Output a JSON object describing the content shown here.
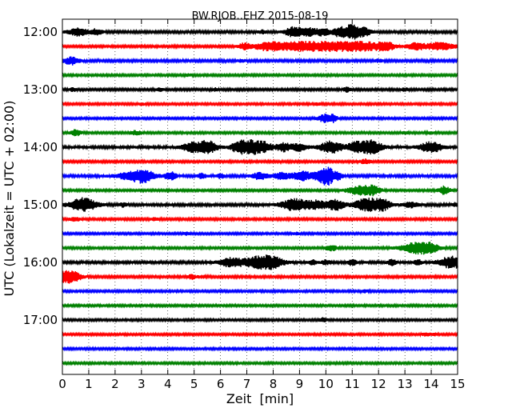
{
  "chart_data": {
    "type": "line",
    "title": "BW.RJOB..EHZ 2015-08-19",
    "xlabel": "Zeit  [min]",
    "ylabel": "UTC (Lokalzeit = UTC + 02:00)",
    "xlim": [
      0,
      15
    ],
    "x_ticks": [
      "0",
      "1",
      "2",
      "3",
      "4",
      "5",
      "6",
      "7",
      "8",
      "9",
      "10",
      "11",
      "12",
      "13",
      "14",
      "15"
    ],
    "y_ticks": [
      {
        "label": "12:00",
        "row": 0
      },
      {
        "label": "13:00",
        "row": 4
      },
      {
        "label": "14:00",
        "row": 8
      },
      {
        "label": "15:00",
        "row": 12
      },
      {
        "label": "16:00",
        "row": 16
      },
      {
        "label": "17:00",
        "row": 20
      }
    ],
    "grid": "vertical dotted",
    "colors": [
      "#000000",
      "#ff0000",
      "#0000ff",
      "#008000"
    ],
    "traces": [
      {
        "row": 0,
        "color": "#000000",
        "base_amp": 1.5,
        "events": [
          [
            0.6,
            4.5,
            0.25
          ],
          [
            1.3,
            3.5,
            0.15
          ],
          [
            7.6,
            2,
            0.1
          ],
          [
            8.8,
            6,
            0.25
          ],
          [
            9.4,
            4,
            0.2
          ],
          [
            9.9,
            4,
            0.2
          ],
          [
            10.5,
            5,
            0.15
          ],
          [
            11.0,
            9,
            0.25
          ],
          [
            11.5,
            4,
            0.15
          ]
        ]
      },
      {
        "row": 1,
        "color": "#ff0000",
        "base_amp": 1.4,
        "events": [
          [
            6.9,
            3.5,
            0.15
          ],
          [
            7.8,
            4.5,
            0.4
          ],
          [
            9.0,
            5,
            0.6
          ],
          [
            10.3,
            5,
            0.6
          ],
          [
            11.5,
            5,
            0.5
          ],
          [
            12.3,
            5,
            0.2
          ],
          [
            13.4,
            4.5,
            0.2
          ],
          [
            14.3,
            4.5,
            0.4
          ]
        ]
      },
      {
        "row": 2,
        "color": "#0000ff",
        "base_amp": 1.5,
        "events": [
          [
            0.35,
            4.5,
            0.2
          ],
          [
            6.8,
            1.5,
            0.1
          ],
          [
            12.0,
            1.5,
            0.1
          ]
        ]
      },
      {
        "row": 3,
        "color": "#008000",
        "base_amp": 1.3,
        "events": [
          [
            4.8,
            1.2,
            0.1
          ]
        ]
      },
      {
        "row": 4,
        "color": "#000000",
        "base_amp": 1.4,
        "events": [
          [
            0.4,
            2,
            0.1
          ],
          [
            3.7,
            1.5,
            0.1
          ],
          [
            5.8,
            1.5,
            0.1
          ],
          [
            10.8,
            3,
            0.1
          ],
          [
            13.0,
            1.5,
            0.1
          ]
        ]
      },
      {
        "row": 5,
        "color": "#ff0000",
        "base_amp": 1.3,
        "events": [
          [
            3.0,
            1.2,
            0.1
          ],
          [
            9.7,
            1.2,
            0.1
          ]
        ]
      },
      {
        "row": 6,
        "color": "#0000ff",
        "base_amp": 1.3,
        "events": [
          [
            10.0,
            5,
            0.2
          ],
          [
            10.3,
            3,
            0.1
          ]
        ]
      },
      {
        "row": 7,
        "color": "#008000",
        "base_amp": 1.3,
        "events": [
          [
            0.5,
            3.5,
            0.15
          ],
          [
            2.7,
            2,
            0.1
          ],
          [
            2.9,
            1.5,
            0.1
          ],
          [
            13.0,
            1.5,
            0.1
          ],
          [
            14.0,
            1.5,
            0.1
          ]
        ]
      },
      {
        "row": 8,
        "color": "#000000",
        "base_amp": 1.7,
        "events": [
          [
            4.9,
            5,
            0.25
          ],
          [
            5.5,
            7.5,
            0.25
          ],
          [
            6.7,
            7,
            0.2
          ],
          [
            7.2,
            8,
            0.25
          ],
          [
            7.7,
            5,
            0.2
          ],
          [
            8.4,
            5,
            0.2
          ],
          [
            9.0,
            4,
            0.2
          ],
          [
            10.2,
            7,
            0.3
          ],
          [
            11.1,
            5,
            0.2
          ],
          [
            11.7,
            8,
            0.3
          ],
          [
            14.0,
            6,
            0.3
          ]
        ]
      },
      {
        "row": 9,
        "color": "#ff0000",
        "base_amp": 1.4,
        "events": [
          [
            11.5,
            2.5,
            0.15
          ]
        ]
      },
      {
        "row": 10,
        "color": "#0000ff",
        "base_amp": 1.6,
        "events": [
          [
            2.6,
            4,
            0.4
          ],
          [
            3.1,
            6,
            0.3
          ],
          [
            4.1,
            5,
            0.15
          ],
          [
            5.3,
            3,
            0.1
          ],
          [
            6.0,
            2.5,
            0.1
          ],
          [
            7.5,
            4,
            0.2
          ],
          [
            8.3,
            4,
            0.2
          ],
          [
            9.1,
            5,
            0.3
          ],
          [
            9.9,
            5,
            0.25
          ],
          [
            10.1,
            7,
            0.2
          ],
          [
            10.5,
            3,
            0.1
          ]
        ]
      },
      {
        "row": 11,
        "color": "#008000",
        "base_amp": 1.3,
        "events": [
          [
            11.3,
            5,
            0.35
          ],
          [
            11.8,
            4,
            0.2
          ],
          [
            14.5,
            5,
            0.15
          ]
        ]
      },
      {
        "row": 12,
        "color": "#000000",
        "base_amp": 1.6,
        "events": [
          [
            0.8,
            8,
            0.35
          ],
          [
            2.3,
            2,
            0.1
          ],
          [
            8.8,
            7,
            0.35
          ],
          [
            9.7,
            5,
            0.3
          ],
          [
            10.4,
            6,
            0.2
          ],
          [
            11.6,
            8,
            0.35
          ],
          [
            12.2,
            5,
            0.2
          ],
          [
            13.2,
            3,
            0.2
          ],
          [
            14.9,
            2,
            0.1
          ]
        ]
      },
      {
        "row": 13,
        "color": "#ff0000",
        "base_amp": 1.4,
        "events": [
          [
            0.5,
            2,
            0.15
          ],
          [
            3.5,
            1.5,
            0.1
          ]
        ]
      },
      {
        "row": 14,
        "color": "#0000ff",
        "base_amp": 1.3,
        "events": [
          [
            4.7,
            1.5,
            0.1
          ],
          [
            8.9,
            1.5,
            0.1
          ]
        ]
      },
      {
        "row": 15,
        "color": "#008000",
        "base_amp": 1.3,
        "events": [
          [
            10.2,
            3.5,
            0.15
          ],
          [
            13.5,
            7,
            0.45
          ],
          [
            14.0,
            3,
            0.2
          ]
        ]
      },
      {
        "row": 16,
        "color": "#000000",
        "base_amp": 1.6,
        "events": [
          [
            6.4,
            5.5,
            0.3
          ],
          [
            7.3,
            5,
            0.35
          ],
          [
            7.9,
            7,
            0.35
          ],
          [
            9.5,
            3,
            0.1
          ],
          [
            10.0,
            3,
            0.1
          ],
          [
            11.0,
            4,
            0.1
          ],
          [
            12.5,
            4,
            0.1
          ],
          [
            13.5,
            3,
            0.1
          ],
          [
            14.8,
            7,
            0.35
          ]
        ]
      },
      {
        "row": 17,
        "color": "#ff0000",
        "base_amp": 1.4,
        "events": [
          [
            0.1,
            7,
            0.25
          ],
          [
            0.5,
            4,
            0.2
          ],
          [
            4.9,
            3,
            0.1
          ],
          [
            5.3,
            1.5,
            0.1
          ]
        ]
      },
      {
        "row": 18,
        "color": "#0000ff",
        "base_amp": 1.3,
        "events": [
          [
            11.5,
            1.5,
            0.1
          ]
        ]
      },
      {
        "row": 19,
        "color": "#008000",
        "base_amp": 1.3,
        "events": []
      },
      {
        "row": 20,
        "color": "#000000",
        "base_amp": 1.3,
        "events": [
          [
            9.9,
            2.5,
            0.1
          ]
        ]
      },
      {
        "row": 21,
        "color": "#ff0000",
        "base_amp": 1.3,
        "events": [
          [
            13.8,
            2,
            0.1
          ],
          [
            14.1,
            1.5,
            0.1
          ]
        ]
      },
      {
        "row": 22,
        "color": "#0000ff",
        "base_amp": 1.3,
        "events": []
      },
      {
        "row": 23,
        "color": "#008000",
        "base_amp": 1.3,
        "events": []
      }
    ]
  }
}
